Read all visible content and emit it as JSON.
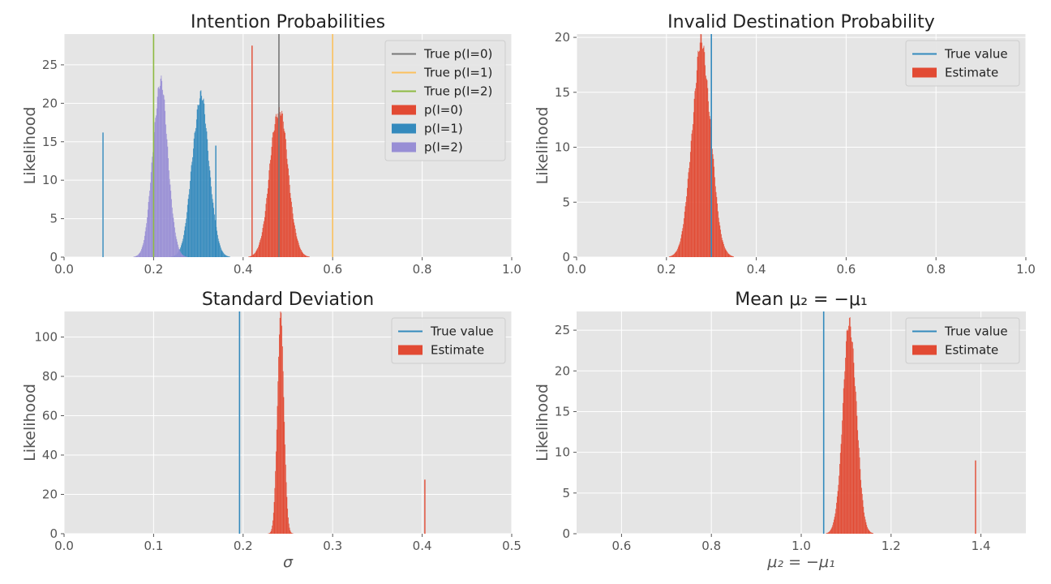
{
  "chart_data": [
    {
      "type": "histogram",
      "title": "Intention Probabilities",
      "xlabel": "",
      "ylabel": "Likelihood",
      "xlim": [
        0.0,
        1.0
      ],
      "ylim": [
        0,
        29
      ],
      "xticks": [
        0.0,
        0.2,
        0.4,
        0.6,
        0.8,
        1.0
      ],
      "xtick_labels": [
        "0.0",
        "0.2",
        "0.4",
        "0.6",
        "0.8",
        "1.0"
      ],
      "yticks": [
        0,
        5,
        10,
        15,
        20,
        25
      ],
      "ytick_labels": [
        "0",
        "5",
        "10",
        "15",
        "20",
        "25"
      ],
      "grid": true,
      "legend_position": "top-right",
      "legend": [
        "True p(I=0)",
        "True p(I=1)",
        "True p(I=2)",
        "p(I=0)",
        "p(I=1)",
        "p(I=2)"
      ],
      "vlines": [
        {
          "name": "True p(I=0)",
          "x": 0.48,
          "color": "#777777"
        },
        {
          "name": "True p(I=1)",
          "x": 0.6,
          "color": "#FBC15E"
        },
        {
          "name": "True p(I=2)",
          "x": 0.2,
          "color": "#8EBA42"
        }
      ],
      "series": [
        {
          "name": "p(I=0)",
          "color": "#E24A33",
          "mean": 0.48,
          "sd": 0.02,
          "peak": 19.5,
          "spikes": [
            {
              "x": 0.42,
              "height": 27.5
            },
            {
              "x": 0.48,
              "height": 14.5
            }
          ]
        },
        {
          "name": "p(I=1)",
          "color": "#348ABD",
          "mean": 0.305,
          "sd": 0.019,
          "peak": 20.8,
          "spikes": [
            {
              "x": 0.087,
              "height": 16.2
            },
            {
              "x": 0.339,
              "height": 14.5
            }
          ]
        },
        {
          "name": "p(I=2)",
          "color": "#988ED5",
          "mean": 0.215,
          "sd": 0.017,
          "peak": 22.6,
          "spikes": []
        }
      ]
    },
    {
      "type": "histogram",
      "title": "Invalid Destination Probability",
      "xlabel": "",
      "ylabel": "Likelihood",
      "xlim": [
        0.0,
        1.0
      ],
      "ylim": [
        0,
        20.3
      ],
      "xticks": [
        0.0,
        0.2,
        0.4,
        0.6,
        0.8,
        1.0
      ],
      "xtick_labels": [
        "0.0",
        "0.2",
        "0.4",
        "0.6",
        "0.8",
        "1.0"
      ],
      "yticks": [
        0,
        5,
        10,
        15,
        20
      ],
      "ytick_labels": [
        "0",
        "5",
        "10",
        "15",
        "20"
      ],
      "grid": true,
      "legend_position": "top-right",
      "legend": [
        "True value",
        "Estimate"
      ],
      "vlines": [
        {
          "name": "True value",
          "x": 0.3,
          "color": "#348ABD"
        }
      ],
      "series": [
        {
          "name": "Estimate",
          "color": "#E24A33",
          "mean": 0.278,
          "sd": 0.021,
          "peak": 19.3,
          "spikes": []
        }
      ]
    },
    {
      "type": "histogram",
      "title": "Standard Deviation",
      "xlabel": "σ",
      "ylabel": "Likelihood",
      "xlim": [
        0.0,
        0.5
      ],
      "ylim": [
        0,
        113
      ],
      "xticks": [
        0.0,
        0.1,
        0.2,
        0.3,
        0.4,
        0.5
      ],
      "xtick_labels": [
        "0.0",
        "0.1",
        "0.2",
        "0.3",
        "0.4",
        "0.5"
      ],
      "yticks": [
        0,
        20,
        40,
        60,
        80,
        100
      ],
      "ytick_labels": [
        "0",
        "20",
        "40",
        "60",
        "80",
        "100"
      ],
      "grid": true,
      "legend_position": "top-right",
      "legend": [
        "True value",
        "Estimate"
      ],
      "vlines": [
        {
          "name": "True value",
          "x": 0.196,
          "color": "#348ABD"
        }
      ],
      "series": [
        {
          "name": "Estimate",
          "color": "#E24A33",
          "mean": 0.242,
          "sd": 0.0037,
          "peak": 108.5,
          "spikes": [
            {
              "x": 0.403,
              "height": 27.5
            }
          ]
        }
      ]
    },
    {
      "type": "histogram",
      "title": "Mean μ₂ = −μ₁",
      "xlabel": "μ₂ = −μ₁",
      "ylabel": "Likelihood",
      "xlim": [
        0.5,
        1.5
      ],
      "ylim": [
        0,
        27.3
      ],
      "xticks": [
        0.6,
        0.8,
        1.0,
        1.2,
        1.4
      ],
      "xtick_labels": [
        "0.6",
        "0.8",
        "1.0",
        "1.2",
        "1.4"
      ],
      "yticks": [
        0,
        5,
        10,
        15,
        20,
        25
      ],
      "ytick_labels": [
        "0",
        "5",
        "10",
        "15",
        "20",
        "25"
      ],
      "grid": true,
      "legend_position": "top-right",
      "legend": [
        "True value",
        "Estimate"
      ],
      "vlines": [
        {
          "name": "True value",
          "x": 1.05,
          "color": "#348ABD"
        }
      ],
      "series": [
        {
          "name": "Estimate",
          "color": "#E24A33",
          "mean": 1.108,
          "sd": 0.015,
          "peak": 26.0,
          "spikes": [
            {
              "x": 1.388,
              "height": 9.0
            }
          ]
        }
      ]
    }
  ]
}
